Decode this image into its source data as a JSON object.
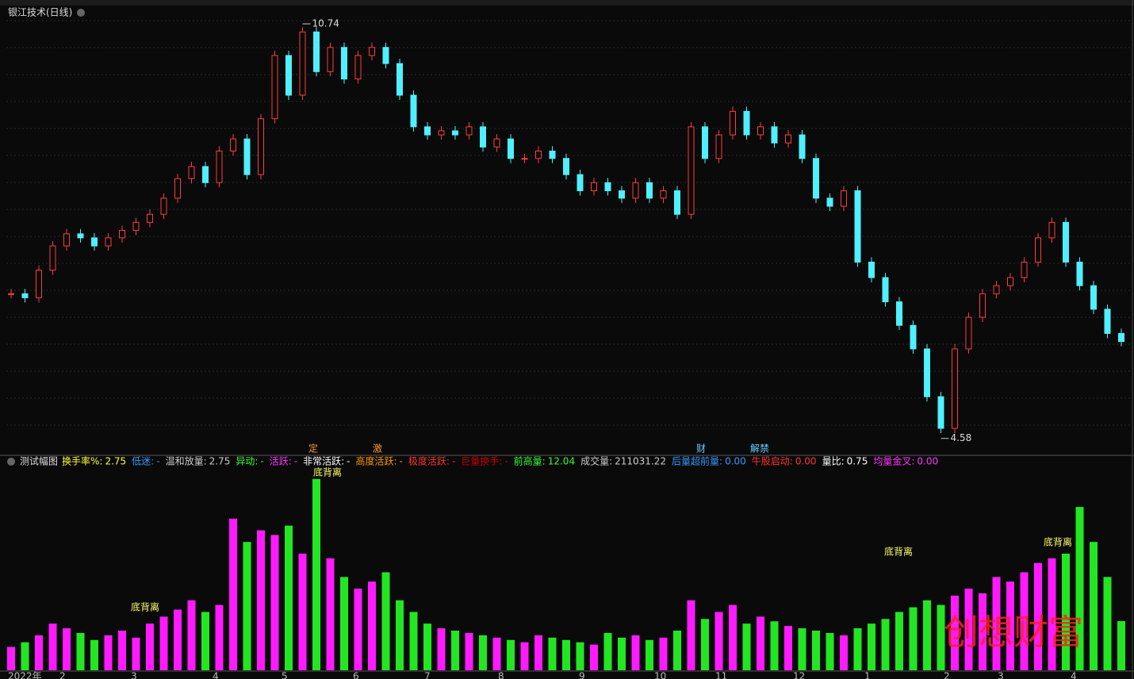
{
  "header": {
    "title": "银江技术(日线)"
  },
  "chart_data": [
    {
      "type": "candle",
      "name": "price",
      "ylim": [
        4.4,
        11.0
      ],
      "up_color": "#ff3c3c",
      "down_color": "#4ff0ff",
      "values": [
        6.73,
        6.67,
        7.08,
        7.44,
        7.62,
        7.56,
        7.44,
        7.56,
        7.67,
        7.79,
        7.91,
        8.15,
        8.44,
        8.62,
        8.38,
        8.85,
        9.03,
        8.5,
        9.33,
        10.27,
        9.68,
        10.62,
        10.03,
        10.39,
        9.92,
        10.27,
        10.39,
        10.15,
        9.68,
        9.21,
        9.09,
        9.15,
        9.09,
        9.21,
        8.91,
        9.03,
        8.74,
        8.74,
        8.85,
        8.74,
        8.5,
        8.26,
        8.38,
        8.26,
        8.15,
        8.38,
        8.15,
        8.26,
        7.91,
        9.21,
        8.74,
        9.09,
        9.44,
        9.09,
        9.21,
        8.97,
        9.09,
        8.74,
        8.15,
        8.03,
        8.26,
        7.2,
        6.97,
        6.61,
        6.26,
        5.91,
        5.2,
        4.73,
        5.91,
        6.38,
        6.73,
        6.85,
        6.97,
        7.2,
        7.56,
        7.79,
        7.2,
        6.85,
        6.5,
        6.14,
        6.02
      ],
      "annotations": [
        {
          "label": "10.74",
          "value": 10.74
        },
        {
          "label": "4.58",
          "value": 4.58
        }
      ],
      "signals": [
        "定",
        "激",
        "财",
        "解禁"
      ]
    },
    {
      "type": "bar",
      "name": "测试幅图",
      "ylim": [
        0,
        850000
      ],
      "up_color": "#ff1aff",
      "down_color": "#22e622",
      "values": [
        100000,
        120000,
        150000,
        200000,
        180000,
        160000,
        130000,
        150000,
        170000,
        140000,
        200000,
        230000,
        260000,
        300000,
        250000,
        280000,
        650000,
        550000,
        600000,
        580000,
        620000,
        500000,
        820000,
        480000,
        400000,
        350000,
        380000,
        420000,
        300000,
        250000,
        200000,
        180000,
        170000,
        160000,
        150000,
        140000,
        130000,
        120000,
        150000,
        140000,
        130000,
        120000,
        110000,
        160000,
        140000,
        150000,
        130000,
        140000,
        170000,
        300000,
        220000,
        250000,
        280000,
        200000,
        230000,
        210000,
        190000,
        180000,
        170000,
        160000,
        150000,
        180000,
        200000,
        220000,
        250000,
        270000,
        300000,
        280000,
        320000,
        350000,
        330000,
        400000,
        380000,
        420000,
        460000,
        480000,
        500000,
        700000,
        550000,
        400000,
        211000
      ],
      "legend": [
        {
          "name": "换手率%:",
          "value": "2.75",
          "color": "#ffff33"
        },
        {
          "name": "低迷:",
          "value": "-",
          "color": "#3399ff"
        },
        {
          "name": "温和放量:",
          "value": "2.75",
          "color": "#cccccc"
        },
        {
          "name": "异动:",
          "value": "-",
          "color": "#33ff33"
        },
        {
          "name": "活跃:",
          "value": "-",
          "color": "#ff33ff"
        },
        {
          "name": "非常活跃:",
          "value": "-",
          "color": "#ffffff"
        },
        {
          "name": "高度活跃:",
          "value": "-",
          "color": "#ff9900"
        },
        {
          "name": "极度活跃:",
          "value": "-",
          "color": "#ff3333"
        },
        {
          "name": "巨量换手:",
          "value": "-",
          "color": "#cc0000"
        },
        {
          "name": "前高量:",
          "value": "12.04",
          "color": "#33ff33"
        },
        {
          "name": "成交量:",
          "value": "211031.22",
          "color": "#cccccc"
        },
        {
          "name": "后量超前量:",
          "value": "0.00",
          "color": "#3399ff"
        },
        {
          "name": "牛股启动:",
          "value": "0.00",
          "color": "#ff3333"
        },
        {
          "name": "量比:",
          "value": "0.75",
          "color": "#ffffff"
        },
        {
          "name": "均量金叉:",
          "value": "0.00",
          "color": "#ff33ff"
        }
      ],
      "annotations": [
        "底背离",
        "底背离",
        "底背离",
        "底背离"
      ],
      "watermark": "创想财富"
    }
  ],
  "x_axis": [
    "2022年",
    "2",
    "3",
    "4",
    "5",
    "6",
    "7",
    "8",
    "9",
    "10",
    "11",
    "12",
    "1",
    "2",
    "3",
    "4"
  ]
}
